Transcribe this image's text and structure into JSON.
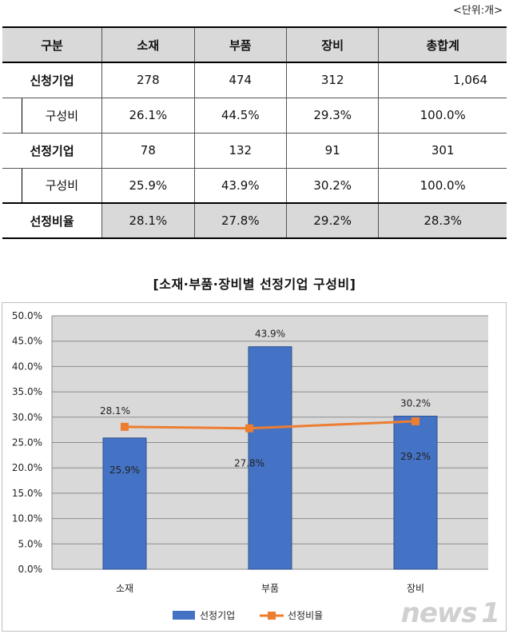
{
  "unit_note": "<단위:개>",
  "table": {
    "headers": [
      "구분",
      "소재",
      "부품",
      "장비",
      "총합계"
    ],
    "rows": {
      "applied": {
        "label": "신청기업",
        "values": [
          "278",
          "474",
          "312",
          "1,064"
        ]
      },
      "applied_ratio": {
        "label": "구성비",
        "values": [
          "26.1%",
          "44.5%",
          "29.3%",
          "100.0%"
        ]
      },
      "selected": {
        "label": "선정기업",
        "values": [
          "78",
          "132",
          "91",
          "301"
        ]
      },
      "selected_ratio": {
        "label": "구성비",
        "values": [
          "25.9%",
          "43.9%",
          "30.2%",
          "100.0%"
        ]
      },
      "selection_rate": {
        "label": "선정비율",
        "values": [
          "28.1%",
          "27.8%",
          "29.2%",
          "28.3%"
        ]
      }
    }
  },
  "chart_data": {
    "type": "bar",
    "title": "[소재·부품·장비별 선정기업 구성비]",
    "categories": [
      "소재",
      "부품",
      "장비"
    ],
    "ylim": [
      0,
      50
    ],
    "yticks": [
      "0.0%",
      "5.0%",
      "10.0%",
      "15.0%",
      "20.0%",
      "25.0%",
      "30.0%",
      "35.0%",
      "40.0%",
      "45.0%",
      "50.0%"
    ],
    "series": [
      {
        "name": "선정기업",
        "kind": "bar",
        "values": [
          25.9,
          43.9,
          30.2
        ],
        "labels": [
          "25.9%",
          "43.9%",
          "30.2%"
        ],
        "color": "#4472c4"
      },
      {
        "name": "선정비율",
        "kind": "line",
        "values": [
          28.1,
          27.8,
          29.2
        ],
        "labels": [
          "28.1%",
          "27.8%",
          "29.2%"
        ],
        "color": "#ed7d31"
      }
    ],
    "plot_background": "#d9d9d9",
    "grid": true,
    "legend_position": "bottom"
  },
  "watermark": "news 1"
}
